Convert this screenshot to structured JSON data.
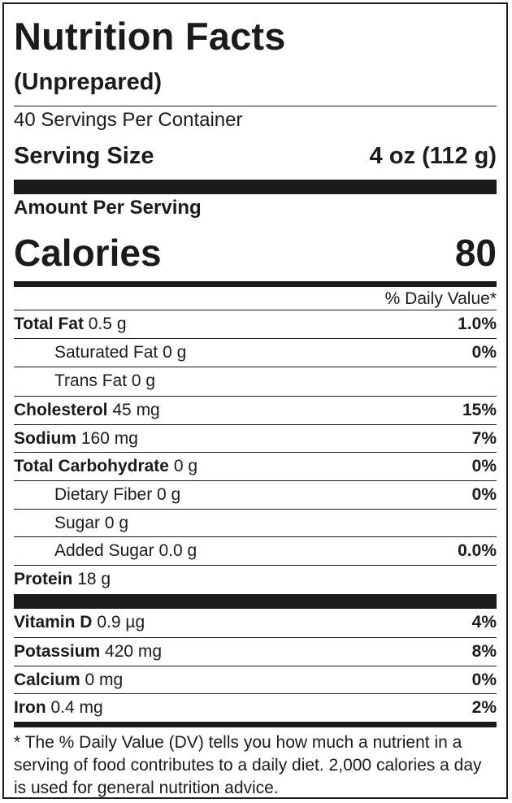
{
  "label": {
    "title": "Nutrition Facts",
    "subtitle": "(Unprepared)",
    "servings_per_container": "40 Servings Per Container",
    "serving_size_label": "Serving Size",
    "serving_size_value": "4 oz (112 g)",
    "amount_per_serving": "Amount Per Serving",
    "calories_label": "Calories",
    "calories_value": "80",
    "dv_header": "% Daily Value*",
    "nutrients": [
      {
        "name": "Total Fat",
        "amount": "0.5 g",
        "dv": "1.0%"
      },
      {
        "name": "Saturated Fat",
        "amount": "0 g",
        "dv": "0%"
      },
      {
        "name": "Trans Fat",
        "amount": "0 g",
        "dv": ""
      },
      {
        "name": "Cholesterol",
        "amount": "45 mg",
        "dv": "15%"
      },
      {
        "name": "Sodium",
        "amount": "160 mg",
        "dv": "7%"
      },
      {
        "name": "Total Carbohydrate",
        "amount": "0 g",
        "dv": "0%"
      },
      {
        "name": "Dietary Fiber",
        "amount": "0 g",
        "dv": "0%"
      },
      {
        "name": "Sugar",
        "amount": "0 g",
        "dv": ""
      },
      {
        "name": "Added Sugar",
        "amount": "0.0 g",
        "dv": "0.0%"
      },
      {
        "name": "Protein",
        "amount": "18 g",
        "dv": ""
      }
    ],
    "vitamins": [
      {
        "name": "Vitamin D",
        "amount": "0.9 µg",
        "dv": "4%"
      },
      {
        "name": "Potassium",
        "amount": "420 mg",
        "dv": "8%"
      },
      {
        "name": "Calcium",
        "amount": "0 mg",
        "dv": "0%"
      },
      {
        "name": "Iron",
        "amount": "0.4 mg",
        "dv": "2%"
      }
    ],
    "footnote": "* The % Daily Value (DV) tells you how much a nutrient in a serving of food contributes to a daily diet. 2,000 calories a day is used for general nutrition advice."
  }
}
